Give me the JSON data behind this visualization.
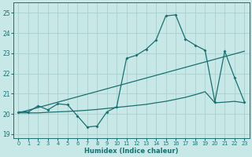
{
  "xlabel": "Humidex (Indice chaleur)",
  "xlim": [
    -0.5,
    23.5
  ],
  "ylim": [
    18.8,
    25.5
  ],
  "yticks": [
    19,
    20,
    21,
    22,
    23,
    24,
    25
  ],
  "xticks": [
    0,
    1,
    2,
    3,
    4,
    5,
    6,
    7,
    8,
    9,
    10,
    11,
    12,
    13,
    14,
    15,
    16,
    17,
    18,
    19,
    20,
    21,
    22,
    23
  ],
  "bg_color": "#c8e8e8",
  "grid_color": "#a8d0d0",
  "line_color": "#1a7070",
  "line1_x": [
    0,
    1,
    2,
    3,
    4,
    5,
    6,
    7,
    8,
    9,
    10,
    11,
    12,
    13,
    14,
    15,
    16,
    17,
    18,
    19,
    20,
    21,
    22,
    23
  ],
  "line1_y": [
    20.1,
    20.1,
    20.4,
    20.2,
    20.5,
    20.45,
    19.9,
    19.35,
    19.4,
    20.1,
    20.35,
    22.75,
    22.9,
    23.2,
    23.65,
    24.85,
    24.9,
    23.7,
    23.4,
    23.15,
    20.6,
    23.1,
    21.8,
    20.6
  ],
  "line2_x": [
    0,
    1,
    2,
    3,
    4,
    5,
    6,
    7,
    8,
    9,
    10,
    11,
    12,
    13,
    14,
    15,
    16,
    17,
    18,
    19,
    20,
    21,
    22,
    23
  ],
  "line2_y": [
    20.05,
    20.05,
    20.05,
    20.08,
    20.1,
    20.12,
    20.15,
    20.18,
    20.22,
    20.27,
    20.32,
    20.37,
    20.42,
    20.47,
    20.55,
    20.62,
    20.72,
    20.82,
    20.95,
    21.1,
    20.55,
    20.58,
    20.62,
    20.55
  ],
  "line3_x": [
    0,
    23
  ],
  "line3_y": [
    20.05,
    23.1
  ]
}
